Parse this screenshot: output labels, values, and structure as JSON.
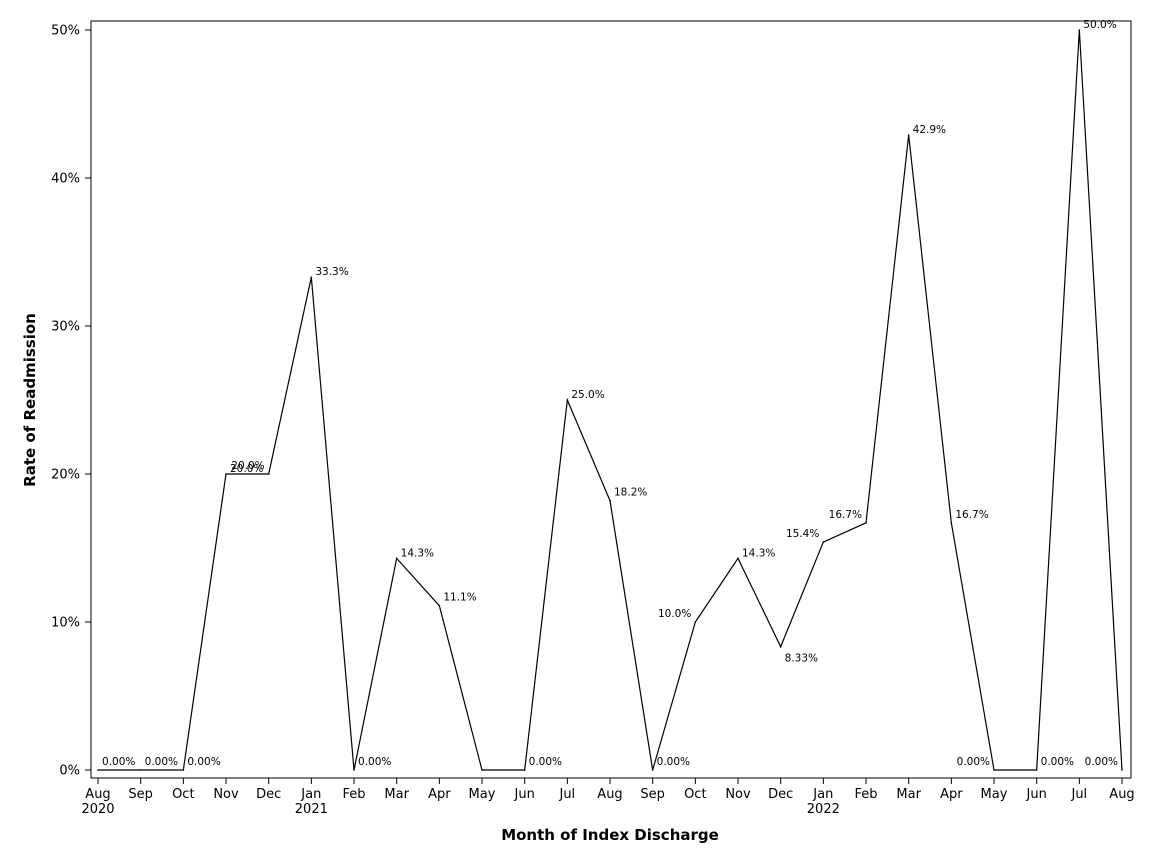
{
  "chart_data": {
    "type": "line",
    "title": "",
    "xlabel": "Month of Index Discharge",
    "ylabel": "Rate of Readmission",
    "ylim": [
      0,
      50
    ],
    "y_ticks": [
      0,
      10,
      20,
      30,
      40,
      50
    ],
    "y_tick_labels": [
      "0%",
      "10%",
      "20%",
      "30%",
      "40%",
      "50%"
    ],
    "grid": false,
    "x": [
      "Aug 2020",
      "Sep 2020",
      "Oct 2020",
      "Nov 2020",
      "Dec 2020",
      "Jan 2021",
      "Feb 2021",
      "Mar 2021",
      "Apr 2021",
      "May 2021",
      "Jun 2021",
      "Jul 2021",
      "Aug 2021",
      "Sep 2021",
      "Oct 2021",
      "Nov 2021",
      "Dec 2021",
      "Jan 2022",
      "Feb 2022",
      "Mar 2022",
      "Apr 2022",
      "May 2022",
      "Jun 2022",
      "Jul 2022",
      "Aug 2022"
    ],
    "x_tick_labels": [
      "Aug",
      "Sep",
      "Oct",
      "Nov",
      "Dec",
      "Jan",
      "Feb",
      "Mar",
      "Apr",
      "May",
      "Jun",
      "Jul",
      "Aug",
      "Sep",
      "Oct",
      "Nov",
      "Dec",
      "Jan",
      "Feb",
      "Mar",
      "Apr",
      "May",
      "Jun",
      "Jul",
      "Aug"
    ],
    "x_year_labels": [
      {
        "index": 0,
        "text": "2020"
      },
      {
        "index": 5,
        "text": "2021"
      },
      {
        "index": 17,
        "text": "2022"
      }
    ],
    "series": [
      {
        "values": [
          0,
          0,
          0,
          20,
          20,
          33.3,
          0,
          14.3,
          11.1,
          0,
          0,
          25,
          18.2,
          0,
          10,
          14.3,
          8.33,
          15.4,
          16.7,
          42.9,
          16.7,
          0,
          0,
          50,
          0
        ],
        "data_labels": [
          "0.00%",
          "0.00%",
          "0.00%",
          "20.0%",
          "20.0%",
          "33.3%",
          "0.00%",
          "14.3%",
          "11.1%",
          "",
          "0.00%",
          "25.0%",
          "18.2%",
          "0.00%",
          "10.0%",
          "14.3%",
          "8.33%",
          "15.4%",
          "16.7%",
          "42.9%",
          "16.7%",
          "0.00%",
          "0.00%",
          "50.0%",
          "0.00%"
        ]
      }
    ]
  }
}
